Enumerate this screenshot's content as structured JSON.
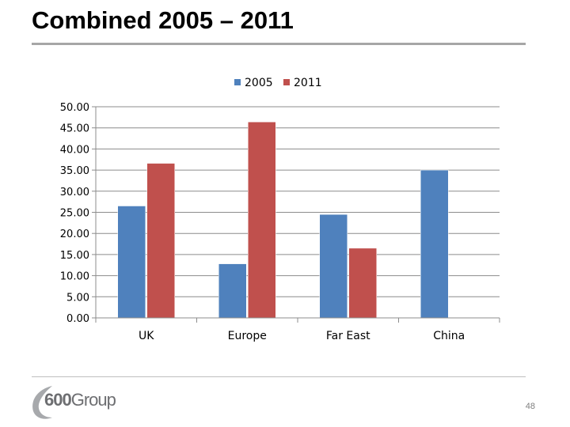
{
  "slide": {
    "title": "Combined 2005 – 2011",
    "page_number": "48",
    "logo_bold": "600",
    "logo_light": "Group"
  },
  "chart_data": {
    "type": "bar",
    "categories": [
      "UK",
      "Europe",
      "Far East",
      "China"
    ],
    "series": [
      {
        "name": "2005",
        "values": [
          26.5,
          12.8,
          24.5,
          35.0
        ],
        "color": "#4f81bd"
      },
      {
        "name": "2011",
        "values": [
          36.6,
          46.4,
          16.5,
          0
        ],
        "color": "#c0504d"
      }
    ],
    "ylim": [
      0,
      50
    ],
    "yticks": [
      "0.00",
      "5.00",
      "10.00",
      "15.00",
      "20.00",
      "25.00",
      "30.00",
      "35.00",
      "40.00",
      "45.00",
      "50.00"
    ],
    "grid": true,
    "legend": "top-center"
  }
}
